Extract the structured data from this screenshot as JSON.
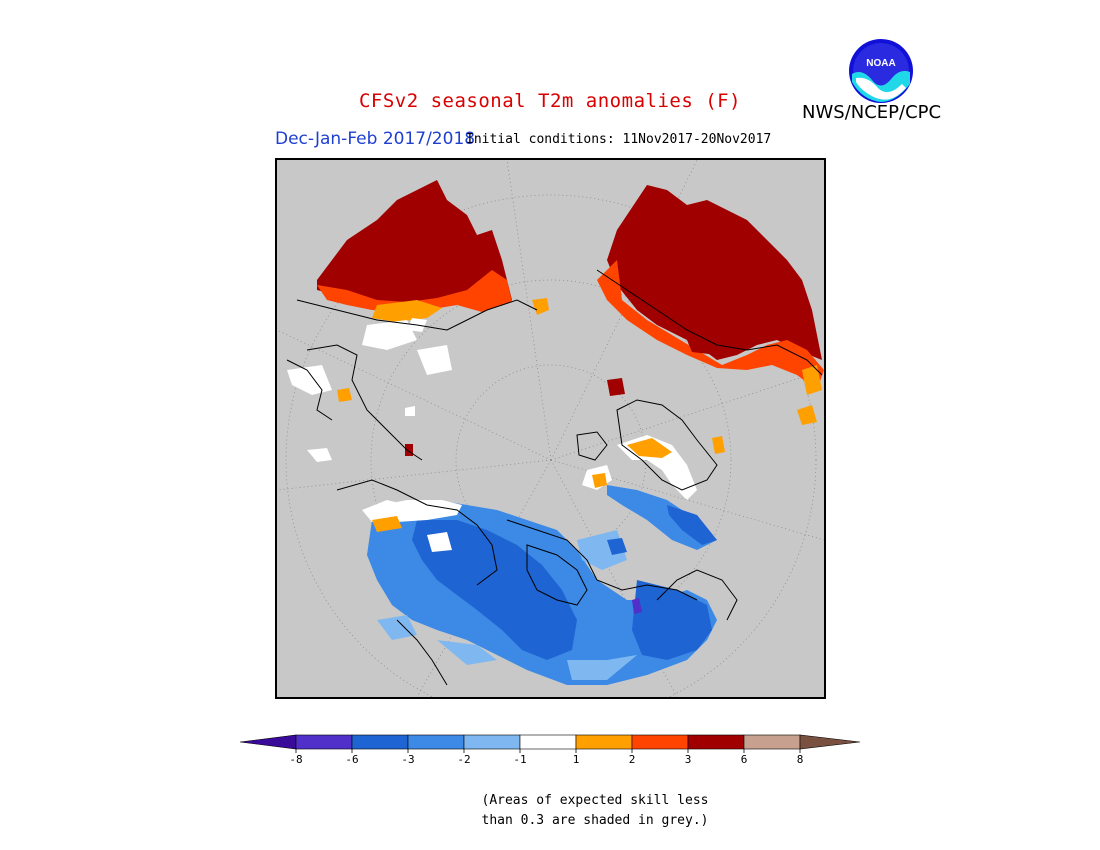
{
  "header": {
    "title": "CFSv2 seasonal T2m anomalies (F)",
    "agency": "NWS/NCEP/CPC",
    "logo_text": "NOAA",
    "period": "Dec-Jan-Feb 2017/2018",
    "initial_conditions": "Initial conditions: 11Nov2017-20Nov2017"
  },
  "colors": {
    "grey_skill": "#c8c8c8",
    "anom_warm_1": "#ffa000",
    "anom_warm_2": "#ff4400",
    "anom_warm_3": "#a00000",
    "anom_warm_6": "#c8a090",
    "anom_cold_1": "#ffffff",
    "anom_cold_2": "#7fb8f0",
    "anom_cold_3": "#3c8ae6",
    "anom_cold_6": "#1e64d2",
    "anom_cold_8": "#5030c8"
  },
  "legend": {
    "ticks": [
      "-8",
      "-6",
      "-3",
      "-2",
      "-1",
      "1",
      "2",
      "3",
      "6",
      "8"
    ],
    "bins": [
      "#5030c8",
      "#1e64d2",
      "#3c8ae6",
      "#7fb8f0",
      "#ffffff",
      "#ffa000",
      "#ff4400",
      "#a00000",
      "#c8a090"
    ],
    "low_arrow_color": "#3a0a9a",
    "high_arrow_color": "#7a5040"
  },
  "note": {
    "line1": "(Areas of expected skill less",
    "line2": "than 0.3 are shaded in grey.)"
  }
}
